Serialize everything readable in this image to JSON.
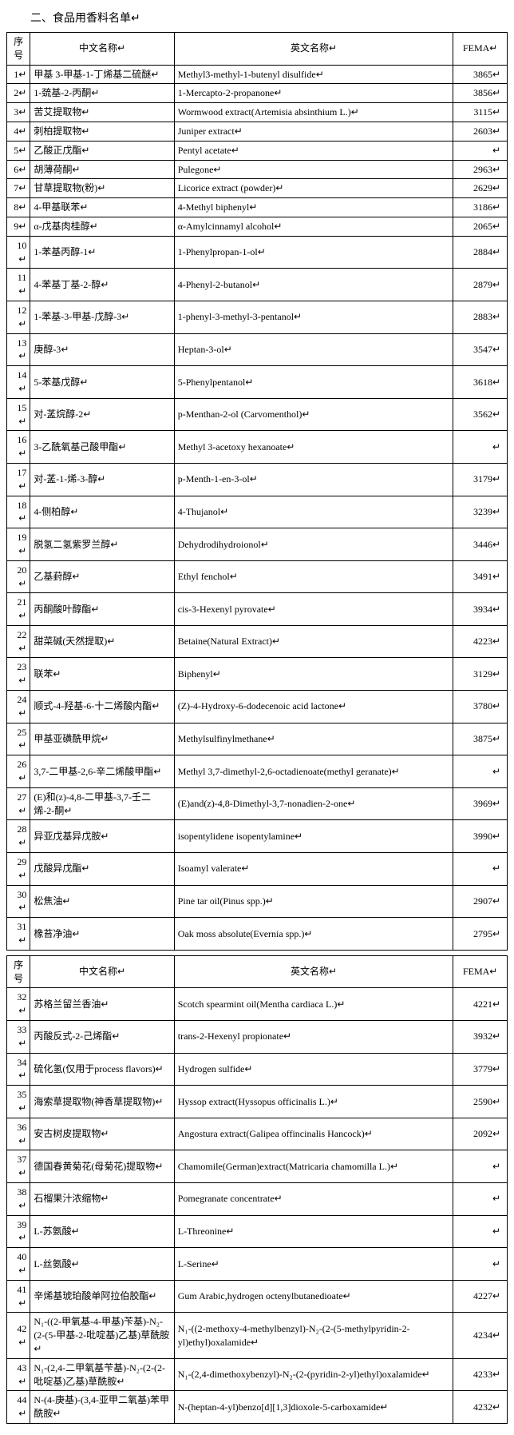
{
  "title": "二、食品用香料名单",
  "headers": {
    "seq": "序号",
    "cn": "中文名称",
    "en": "英文名称",
    "fema": "FEMA"
  },
  "splitAfterSeq": 31,
  "rows": [
    {
      "seq": 1,
      "cn": "甲基 3-甲基-1-丁烯基二硫醚",
      "en": "Methyl3-methyl-1-butenyl disulfide",
      "fema": "3865"
    },
    {
      "seq": 2,
      "cn": "1-巯基-2-丙酮",
      "en": "1-Mercapto-2-propanone",
      "fema": "3856"
    },
    {
      "seq": 3,
      "cn": "苦艾提取物",
      "en": "Wormwood extract(Artemisia absinthium L.)",
      "fema": "3115"
    },
    {
      "seq": 4,
      "cn": "刺柏提取物",
      "en": "Juniper extract",
      "fema": "2603"
    },
    {
      "seq": 5,
      "cn": "乙酸正戊酯",
      "en": "Pentyl acetate",
      "fema": ""
    },
    {
      "seq": 6,
      "cn": "胡薄荷酮",
      "en": "Pulegone",
      "fema": "2963"
    },
    {
      "seq": 7,
      "cn": "甘草提取物(粉)",
      "en": "Licorice extract (powder)",
      "fema": "2629"
    },
    {
      "seq": 8,
      "cn": "4-甲基联苯",
      "en": "4-Methyl biphenyl",
      "fema": "3186"
    },
    {
      "seq": 9,
      "cn": "α-戊基肉桂醇",
      "en": "α-Amylcinnamyl alcohol",
      "fema": "2065"
    },
    {
      "seq": 10,
      "cn": "1-苯基丙醇-1",
      "en": "1-Phenylpropan-1-ol",
      "fema": "2884"
    },
    {
      "seq": 11,
      "cn": "4-苯基丁基-2-醇",
      "en": "4-Phenyl-2-butanol",
      "fema": "2879"
    },
    {
      "seq": 12,
      "cn": "1-苯基-3-甲基-戊醇-3",
      "en": "1-phenyl-3-methyl-3-pentanol",
      "fema": "2883"
    },
    {
      "seq": 13,
      "cn": "庚醇-3",
      "en": "Heptan-3-ol",
      "fema": "3547"
    },
    {
      "seq": 14,
      "cn": "5-苯基戊醇",
      "en": "5-Phenylpentanol",
      "fema": "3618"
    },
    {
      "seq": 15,
      "cn": "对-䓝烷醇-2",
      "en": "p-Menthan-2-ol (Carvomenthol)",
      "fema": "3562"
    },
    {
      "seq": 16,
      "cn": "3-乙酰氧基己酸甲酯",
      "en": "Methyl 3-acetoxy hexanoate",
      "fema": ""
    },
    {
      "seq": 17,
      "cn": "对-䓝-1-烯-3-醇",
      "en": "p-Menth-1-en-3-ol",
      "fema": "3179"
    },
    {
      "seq": 18,
      "cn": "4-侧柏醇",
      "en": "4-Thujanol",
      "fema": "3239"
    },
    {
      "seq": 19,
      "cn": "脱氢二氢紫罗兰醇",
      "en": "Dehydrodihydroionol",
      "fema": "3446"
    },
    {
      "seq": 20,
      "cn": "乙基葑醇",
      "en": "Ethyl fenchol",
      "fema": "3491"
    },
    {
      "seq": 21,
      "cn": "丙酮酸叶醇酯",
      "en": "cis-3-Hexenyl pyrovate",
      "fema": "3934"
    },
    {
      "seq": 22,
      "cn": "甜菜碱(天然提取)",
      "en": "Betaine(Natural Extract)",
      "fema": "4223"
    },
    {
      "seq": 23,
      "cn": "联苯",
      "en": "Biphenyl",
      "fema": "3129"
    },
    {
      "seq": 24,
      "cn": "顺式-4-羟基-6-十二烯酸内酯",
      "en": "(Z)-4-Hydroxy-6-dodecenoic acid lactone",
      "fema": "3780"
    },
    {
      "seq": 25,
      "cn": "甲基亚磺酰甲烷",
      "en": "Methylsulfinylmethane",
      "fema": "3875"
    },
    {
      "seq": 26,
      "cn": "3,7-二甲基-2,6-辛二烯酸甲酯",
      "en": "Methyl 3,7-dimethyl-2,6-octadienoate(methyl geranate)",
      "fema": ""
    },
    {
      "seq": 27,
      "cn": "(E)和(z)-4,8-二甲基-3,7-壬二烯-2-酮",
      "en": "(E)and(z)-4,8-Dimethyl-3,7-nonadien-2-one",
      "fema": "3969"
    },
    {
      "seq": 28,
      "cn": "异亚戊基异戊胺",
      "en": "isopentylidene isopentylamine",
      "fema": "3990"
    },
    {
      "seq": 29,
      "cn": "戊酸异戊酯",
      "en": "Isoamyl valerate",
      "fema": ""
    },
    {
      "seq": 30,
      "cn": "松焦油",
      "en": "Pine tar oil(Pinus spp.)",
      "fema": "2907"
    },
    {
      "seq": 31,
      "cn": "橡苔净油",
      "en": "Oak moss absolute(Evernia spp.)",
      "fema": "2795"
    },
    {
      "seq": 32,
      "cn": "苏格兰留兰香油",
      "en": "Scotch spearmint oil(Mentha cardiaca L.)",
      "fema": "4221"
    },
    {
      "seq": 33,
      "cn": "丙酸反式-2-己烯酯",
      "en": "trans-2-Hexenyl propionate",
      "fema": "3932"
    },
    {
      "seq": 34,
      "cn": "硫化氢(仅用于process flavors)",
      "en": "Hydrogen sulfide",
      "fema": "3779"
    },
    {
      "seq": 35,
      "cn": "海索草提取物(神香草提取物)",
      "en": "Hyssop extract(Hyssopus officinalis L.)",
      "fema": "2590"
    },
    {
      "seq": 36,
      "cn": "安古树皮提取物",
      "en": "Angostura extract(Galipea offincinalis Hancock)",
      "fema": "2092"
    },
    {
      "seq": 37,
      "cn": "德国春黄菊花(母菊花)提取物",
      "en": "Chamomile(German)extract(Matricaria chamomilla L.)",
      "fema": ""
    },
    {
      "seq": 38,
      "cn": "石榴果汁浓缩物",
      "en": "Pomegranate concentrate",
      "fema": ""
    },
    {
      "seq": 39,
      "cn": "L-苏氨酸",
      "en": "L-Threonine",
      "fema": ""
    },
    {
      "seq": 40,
      "cn": "L-丝氨酸",
      "en": "L-Serine",
      "fema": ""
    },
    {
      "seq": 41,
      "cn": "辛烯基琥珀酸单阿拉伯胶酯",
      "en": "Gum Arabic,hydrogen octenylbutanedioate",
      "fema": "4227"
    },
    {
      "seq": 42,
      "cn": "N₁-((2-甲氧基-4-甲基)苄基)-N₂-(2-(5-甲基-2-吡啶基)乙基)草酰胺",
      "en": "N₁-((2-methoxy-4-methylbenzyl)-N₂-(2-(5-methylpyridin-2-yl)ethyl)oxalamide",
      "fema": "4234"
    },
    {
      "seq": 43,
      "cn": "N₁-(2,4-二甲氧基苄基)-N₂-(2-(2-吡啶基)乙基)草酰胺",
      "en": "N₁-(2,4-dimethoxybenzyl)-N₂-(2-(pyridin-2-yl)ethyl)oxalamide",
      "fema": "4233"
    },
    {
      "seq": 44,
      "cn": "N-(4-庚基)-(3,4-亚甲二氧基)苯甲酰胺",
      "en": "N-(heptan-4-yl)benzo[d][1,3]dioxole-5-carboxamide",
      "fema": "4232"
    }
  ]
}
